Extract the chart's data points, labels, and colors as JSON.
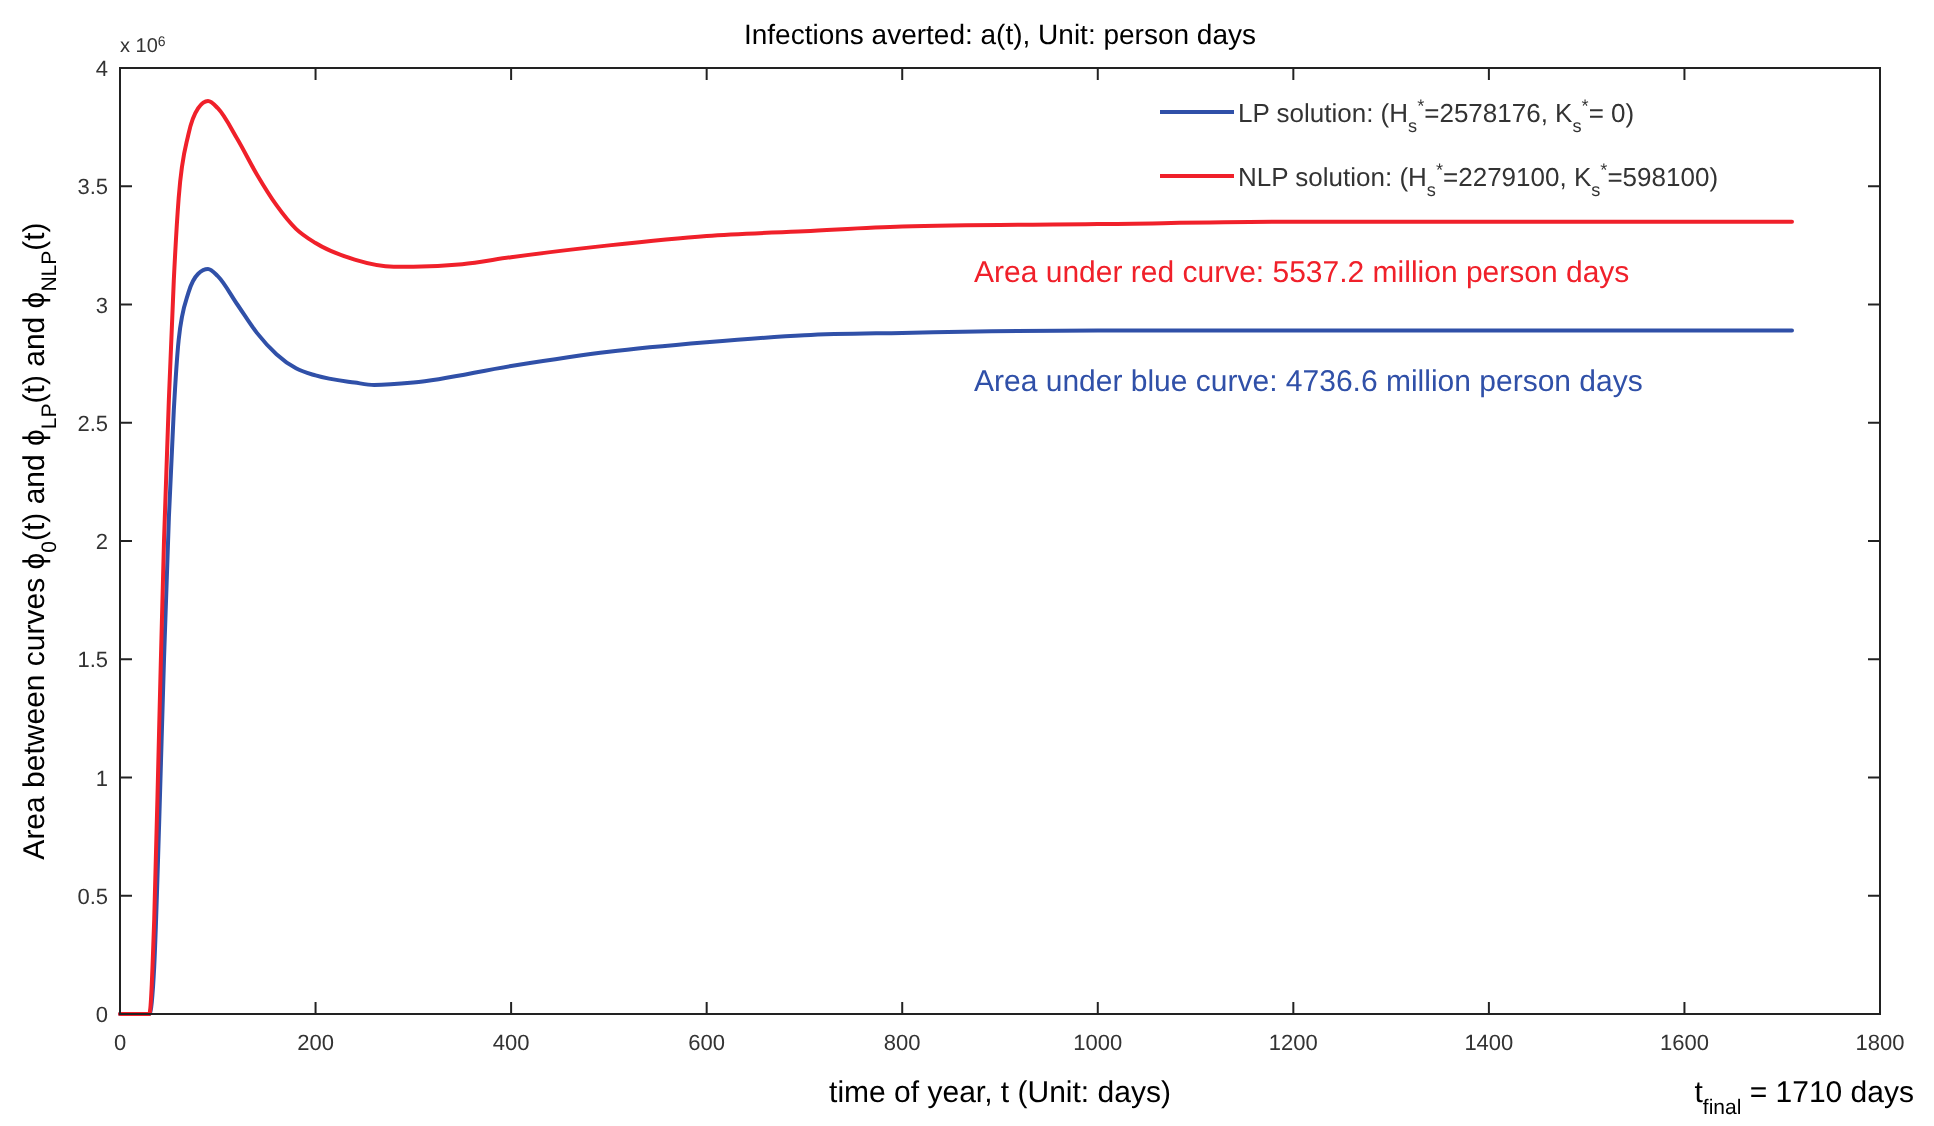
{
  "chart_data": {
    "type": "line",
    "title": "Infections averted: a(t), Unit: person days",
    "xlabel": "time of year, t (Unit: days)",
    "ylabel": "Area between curves ϕ$_{0}$(t)  and  ϕ$_{LP}$(t)  and  ϕ$_{NLP}$(t)",
    "annotations": [
      "x 10$^{6}$",
      "Area under red curve: 5537.2 million person days",
      "Area under blue curve: 4736.6 million person days",
      "t$_{final}$ = 1710 days"
    ],
    "series": [
      {
        "name": "LP solution:    (H$_{s}$$^{*}$=2578176, K$_{s}$$^{*}$= 0)",
        "color": "#3050a8",
        "x": [
          0,
          30,
          35,
          40,
          45,
          50,
          55,
          60,
          70,
          80,
          90,
          100,
          120,
          140,
          160,
          180,
          200,
          240,
          260,
          300,
          400,
          500,
          600,
          700,
          800,
          1000,
          1200,
          1710
        ],
        "values": [
          0,
          0,
          0.2,
          0.8,
          1.5,
          2.1,
          2.55,
          2.85,
          3.05,
          3.13,
          3.15,
          3.12,
          3.0,
          2.88,
          2.79,
          2.73,
          2.7,
          2.67,
          2.66,
          2.67,
          2.74,
          2.8,
          2.84,
          2.87,
          2.88,
          2.89,
          2.89,
          2.89
        ]
      },
      {
        "name": "NLP solution: (H$_{s}$$^{*}$=2279100,  K$_{s}$$^{*}$=598100)",
        "color": "#f0202a",
        "x": [
          0,
          30,
          35,
          40,
          45,
          50,
          55,
          60,
          70,
          80,
          90,
          100,
          120,
          140,
          160,
          180,
          200,
          240,
          280,
          300,
          350,
          400,
          500,
          600,
          700,
          800,
          1000,
          1200,
          1710
        ],
        "values": [
          0,
          0,
          0.4,
          1.2,
          2.0,
          2.6,
          3.1,
          3.45,
          3.72,
          3.83,
          3.86,
          3.83,
          3.7,
          3.55,
          3.42,
          3.32,
          3.26,
          3.19,
          3.16,
          3.16,
          3.17,
          3.2,
          3.25,
          3.29,
          3.31,
          3.33,
          3.34,
          3.35,
          3.35
        ]
      }
    ],
    "xlim": [
      0,
      1800
    ],
    "xticks": [
      0,
      200,
      400,
      600,
      800,
      1000,
      1200,
      1400,
      1600,
      1800
    ],
    "ylim": [
      0,
      4
    ],
    "yticks": [
      0,
      0.5,
      1,
      1.5,
      2,
      2.5,
      3,
      3.5,
      4
    ],
    "legend": "top right",
    "grid": false,
    "line_style": "solid"
  }
}
